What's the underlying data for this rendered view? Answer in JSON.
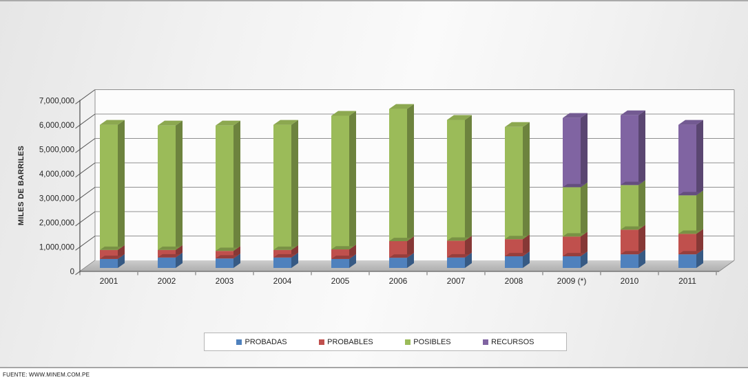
{
  "page": {
    "footer_source": "FUENTE: WWW.MINEM.COM.PE"
  },
  "chart_data": {
    "type": "bar",
    "stacked": true,
    "projection": "3d",
    "title": "",
    "xlabel": "",
    "ylabel": "MILES DE BARRILES",
    "ylim": [
      0,
      7000000
    ],
    "ytick_step": 1000000,
    "ytick_labels": [
      "0",
      "1,000,000",
      "2,000,000",
      "3,000,000",
      "4,000,000",
      "5,000,000",
      "6,000,000",
      "7,000,000"
    ],
    "grid": true,
    "legend_position": "bottom",
    "categories": [
      "2001",
      "2002",
      "2003",
      "2004",
      "2005",
      "2006",
      "2007",
      "2008",
      "2009 (*)",
      "2010",
      "2011"
    ],
    "series": [
      {
        "name": "PROBADAS",
        "color": "#4F81BD",
        "values": [
          370000,
          430000,
          390000,
          430000,
          370000,
          420000,
          430000,
          480000,
          480000,
          560000,
          560000
        ]
      },
      {
        "name": "PROBABLES",
        "color": "#C0504D",
        "values": [
          370000,
          310000,
          310000,
          310000,
          390000,
          680000,
          690000,
          700000,
          810000,
          1010000,
          840000
        ]
      },
      {
        "name": "POSIBLES",
        "color": "#9BBB59",
        "values": [
          5130000,
          5100000,
          5140000,
          5130000,
          5480000,
          5420000,
          4950000,
          4600000,
          2020000,
          1830000,
          1580000
        ]
      },
      {
        "name": "RECURSOS",
        "color": "#8064A2",
        "values": [
          0,
          0,
          0,
          0,
          0,
          0,
          0,
          0,
          2840000,
          2860000,
          2890000
        ]
      }
    ]
  }
}
